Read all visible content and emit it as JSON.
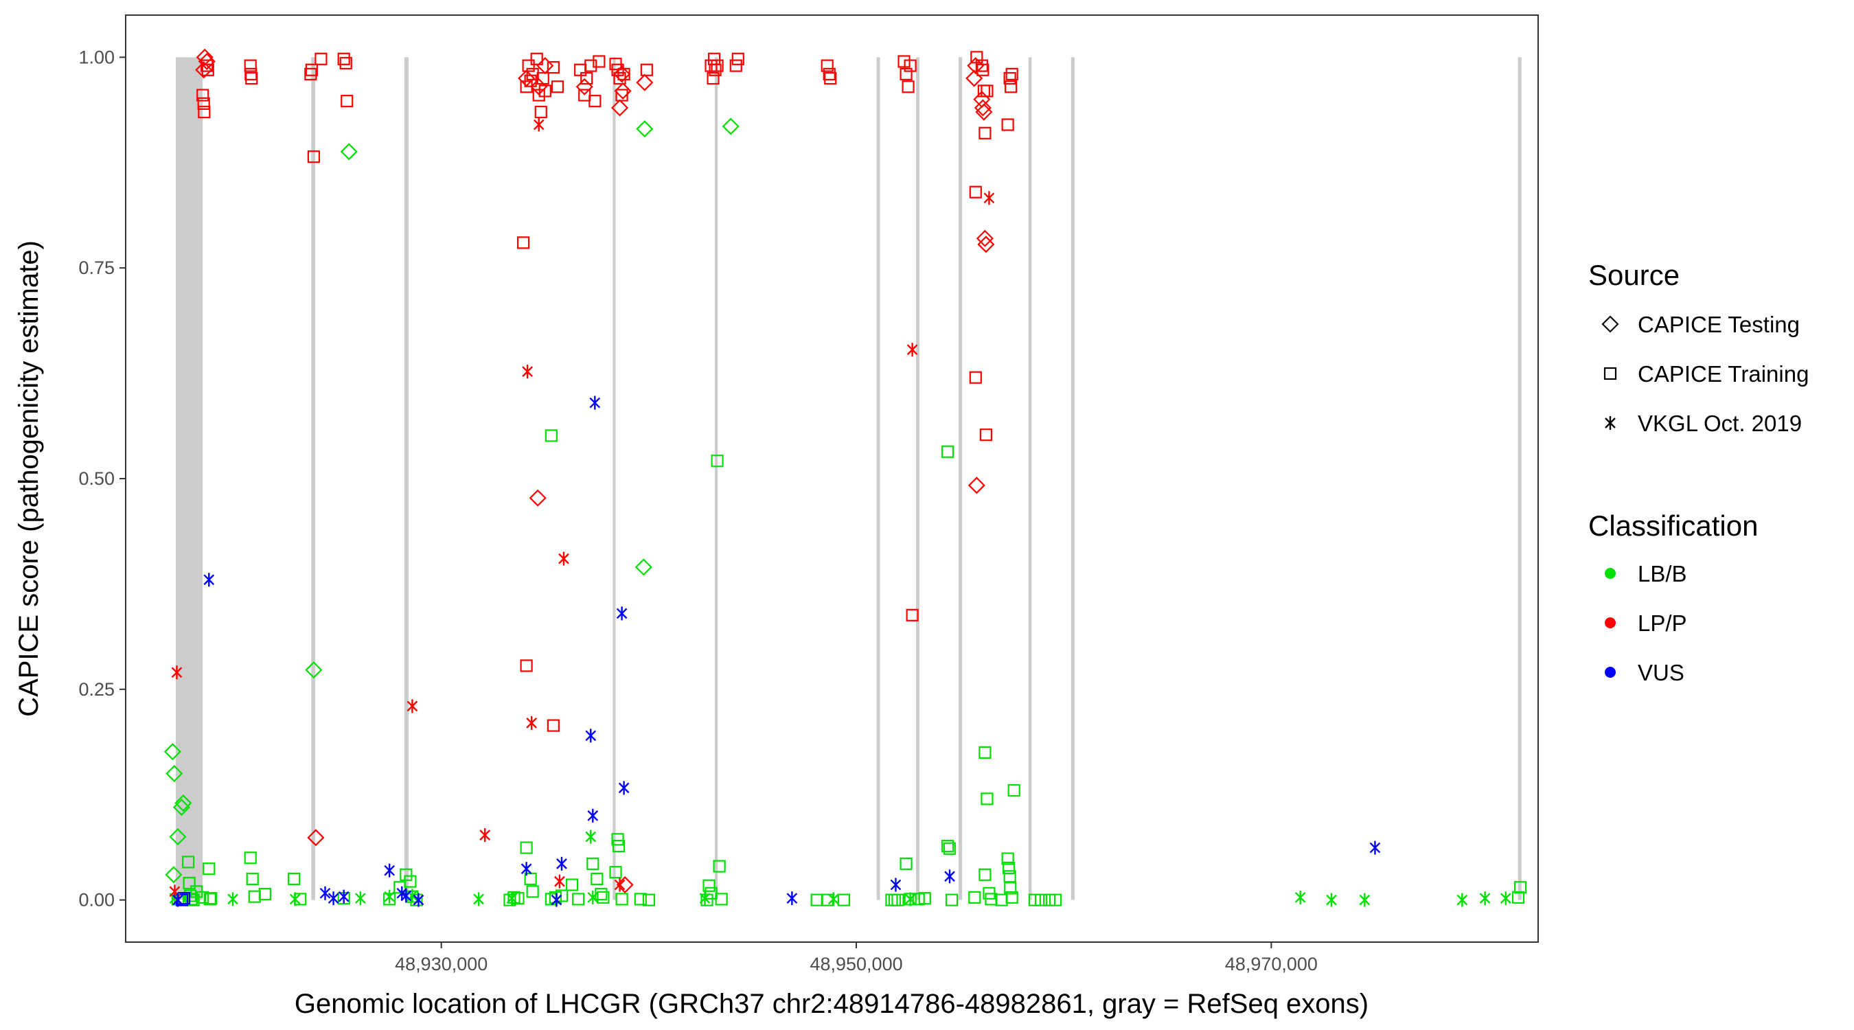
{
  "chart_data": {
    "type": "scatter",
    "title": "",
    "xlabel": "Genomic location of LHCGR (GRCh37 chr2:48914786-48982861, gray = RefSeq exons)",
    "ylabel": "CAPICE score (pathogenicity estimate)",
    "xlim": [
      48914786,
      48982861
    ],
    "ylim": [
      -0.05,
      1.05
    ],
    "x_ticks": [
      48930000,
      48950000,
      48970000
    ],
    "x_tick_labels": [
      "48,930,000",
      "48,950,000",
      "48,970,000"
    ],
    "y_ticks": [
      0,
      0.25,
      0.5,
      0.75,
      1
    ],
    "y_tick_labels": [
      "0.00",
      "0.25",
      "0.50",
      "0.75",
      "1.00"
    ],
    "grid": false,
    "exons": [
      {
        "start": 48917200,
        "end": 48918500
      },
      {
        "start": 48923730,
        "end": 48923920
      },
      {
        "start": 48928220,
        "end": 48928420
      },
      {
        "start": 48938260,
        "end": 48938400
      },
      {
        "start": 48943180,
        "end": 48943320
      },
      {
        "start": 48950980,
        "end": 48951140
      },
      {
        "start": 48952880,
        "end": 48953040
      },
      {
        "start": 48954930,
        "end": 48955100
      },
      {
        "start": 48958300,
        "end": 48958450
      },
      {
        "start": 48960350,
        "end": 48960520
      },
      {
        "start": 48981890,
        "end": 48982060
      }
    ],
    "legend": {
      "position": "right",
      "source_title": "Source",
      "classification_title": "Classification",
      "sources": [
        {
          "key": "testing",
          "label": "CAPICE Testing",
          "shape": "diamond"
        },
        {
          "key": "training",
          "label": "CAPICE Training",
          "shape": "square"
        },
        {
          "key": "vkgl",
          "label": "VKGL Oct. 2019",
          "shape": "asterisk"
        }
      ],
      "classes": [
        {
          "key": "LB",
          "label": "LB/B",
          "color": "#00E000"
        },
        {
          "key": "LP",
          "label": "LP/P",
          "color": "#FF0000"
        },
        {
          "key": "VUS",
          "label": "VUS",
          "color": "#0000FF"
        }
      ]
    },
    "series": [
      {
        "source": "testing",
        "classification": "LB",
        "points": [
          [
            48917050,
            0.176
          ],
          [
            48917130,
            0.15
          ],
          [
            48917300,
            0.075
          ],
          [
            48917480,
            0.11
          ],
          [
            48917560,
            0.115
          ],
          [
            48917100,
            0.03
          ],
          [
            48923850,
            0.273
          ],
          [
            48925550,
            0.888
          ],
          [
            48939800,
            0.915
          ],
          [
            48939750,
            0.395
          ],
          [
            48943950,
            0.918
          ]
        ]
      },
      {
        "source": "testing",
        "classification": "LP",
        "points": [
          [
            48918600,
            1.0
          ],
          [
            48918700,
            0.995
          ],
          [
            48918550,
            0.985
          ],
          [
            48923950,
            0.074
          ],
          [
            48934650,
            0.477
          ],
          [
            48934100,
            0.975
          ],
          [
            48934700,
            0.965
          ],
          [
            48935000,
            0.99
          ],
          [
            48936900,
            0.965
          ],
          [
            48938600,
            0.94
          ],
          [
            48938700,
            0.98
          ],
          [
            48938750,
            0.96
          ],
          [
            48939800,
            0.97
          ],
          [
            48938850,
            0.018
          ],
          [
            48955750,
            0.99
          ],
          [
            48955680,
            0.975
          ],
          [
            48956050,
            0.95
          ],
          [
            48956100,
            0.94
          ],
          [
            48956150,
            0.935
          ],
          [
            48956200,
            0.785
          ],
          [
            48956250,
            0.778
          ],
          [
            48955800,
            0.492
          ]
        ]
      },
      {
        "source": "training",
        "classification": "LB",
        "points": [
          [
            48917300,
            0.001
          ],
          [
            48917600,
            0.002
          ],
          [
            48917800,
            0.045
          ],
          [
            48917850,
            0.02
          ],
          [
            48917900,
            0.005
          ],
          [
            48917950,
            0.001
          ],
          [
            48918050,
            0.0
          ],
          [
            48918200,
            0.01
          ],
          [
            48918500,
            0.003
          ],
          [
            48918800,
            0.037
          ],
          [
            48918850,
            0.001
          ],
          [
            48918900,
            0.002
          ],
          [
            48920800,
            0.05
          ],
          [
            48920900,
            0.025
          ],
          [
            48921000,
            0.004
          ],
          [
            48921500,
            0.007
          ],
          [
            48922900,
            0.025
          ],
          [
            48923200,
            0.001
          ],
          [
            48925300,
            0.002
          ],
          [
            48927500,
            0.001
          ],
          [
            48928000,
            0.015
          ],
          [
            48928300,
            0.03
          ],
          [
            48928500,
            0.022
          ],
          [
            48928600,
            0.004
          ],
          [
            48928800,
            0.0
          ],
          [
            48933300,
            0.0
          ],
          [
            48933500,
            0.003
          ],
          [
            48933700,
            0.002
          ],
          [
            48934100,
            0.062
          ],
          [
            48934300,
            0.025
          ],
          [
            48934400,
            0.01
          ],
          [
            48935300,
            0.551
          ],
          [
            48935300,
            0.001
          ],
          [
            48935500,
            0.003
          ],
          [
            48935800,
            0.005
          ],
          [
            48936300,
            0.018
          ],
          [
            48936600,
            0.001
          ],
          [
            48937300,
            0.043
          ],
          [
            48937500,
            0.025
          ],
          [
            48937700,
            0.007
          ],
          [
            48937800,
            0.003
          ],
          [
            48938400,
            0.033
          ],
          [
            48938500,
            0.072
          ],
          [
            48938550,
            0.064
          ],
          [
            48938700,
            0.001
          ],
          [
            48939600,
            0.001
          ],
          [
            48940000,
            0.0
          ],
          [
            48942800,
            0.0
          ],
          [
            48942900,
            0.017
          ],
          [
            48943000,
            0.008
          ],
          [
            48943300,
            0.521
          ],
          [
            48943400,
            0.04
          ],
          [
            48943500,
            0.001
          ],
          [
            48948100,
            0.0
          ],
          [
            48948600,
            0.0
          ],
          [
            48949400,
            0.0
          ],
          [
            48951700,
            0.0
          ],
          [
            48951850,
            0.0
          ],
          [
            48952000,
            0.0
          ],
          [
            48952400,
            0.043
          ],
          [
            48952600,
            0.001
          ],
          [
            48953000,
            0.001
          ],
          [
            48953300,
            0.002
          ],
          [
            48954400,
            0.532
          ],
          [
            48954400,
            0.064
          ],
          [
            48954500,
            0.061
          ],
          [
            48954600,
            0.0
          ],
          [
            48955700,
            0.003
          ],
          [
            48956200,
            0.175
          ],
          [
            48956200,
            0.03
          ],
          [
            48956300,
            0.12
          ],
          [
            48956400,
            0.008
          ],
          [
            48956500,
            0.001
          ],
          [
            48957000,
            0.0
          ],
          [
            48957300,
            0.049
          ],
          [
            48957350,
            0.038
          ],
          [
            48957400,
            0.028
          ],
          [
            48957420,
            0.014
          ],
          [
            48957500,
            0.003
          ],
          [
            48957600,
            0.13
          ],
          [
            48958600,
            0.0
          ],
          [
            48958900,
            0.0
          ],
          [
            48959300,
            0.0
          ],
          [
            48959600,
            0.0
          ],
          [
            48981900,
            0.003
          ],
          [
            48982000,
            0.015
          ]
        ]
      },
      {
        "source": "training",
        "classification": "LP",
        "points": [
          [
            48918500,
            0.955
          ],
          [
            48918550,
            0.945
          ],
          [
            48918570,
            0.935
          ],
          [
            48918700,
            0.99
          ],
          [
            48918750,
            0.985
          ],
          [
            48920800,
            0.99
          ],
          [
            48920820,
            0.98
          ],
          [
            48920850,
            0.975
          ],
          [
            48923700,
            0.98
          ],
          [
            48923750,
            0.985
          ],
          [
            48924200,
            0.998
          ],
          [
            48923850,
            0.882
          ],
          [
            48925300,
            0.998
          ],
          [
            48925400,
            0.993
          ],
          [
            48925450,
            0.948
          ],
          [
            48934100,
            0.965
          ],
          [
            48934200,
            0.99
          ],
          [
            48934300,
            0.972
          ],
          [
            48934400,
            0.98
          ],
          [
            48934600,
            0.998
          ],
          [
            48934700,
            0.955
          ],
          [
            48934800,
            0.935
          ],
          [
            48934900,
            0.975
          ],
          [
            48935000,
            0.96
          ],
          [
            48935400,
            0.988
          ],
          [
            48935600,
            0.965
          ],
          [
            48933950,
            0.78
          ],
          [
            48934100,
            0.278
          ],
          [
            48935400,
            0.207
          ],
          [
            48936700,
            0.985
          ],
          [
            48936900,
            0.955
          ],
          [
            48937000,
            0.975
          ],
          [
            48937200,
            0.99
          ],
          [
            48937400,
            0.948
          ],
          [
            48937600,
            0.995
          ],
          [
            48938400,
            0.992
          ],
          [
            48938500,
            0.985
          ],
          [
            48938600,
            0.975
          ],
          [
            48938700,
            0.955
          ],
          [
            48938800,
            0.98
          ],
          [
            48939900,
            0.985
          ],
          [
            48943000,
            0.99
          ],
          [
            48943100,
            0.975
          ],
          [
            48943150,
            0.998
          ],
          [
            48943200,
            0.985
          ],
          [
            48943300,
            0.99
          ],
          [
            48944200,
            0.99
          ],
          [
            48944300,
            0.998
          ],
          [
            48948600,
            0.99
          ],
          [
            48948700,
            0.98
          ],
          [
            48948750,
            0.975
          ],
          [
            48952300,
            0.995
          ],
          [
            48952400,
            0.98
          ],
          [
            48952500,
            0.965
          ],
          [
            48952600,
            0.99
          ],
          [
            48952700,
            0.338
          ],
          [
            48955800,
            1.0
          ],
          [
            48955750,
            0.84
          ],
          [
            48955750,
            0.62
          ],
          [
            48956050,
            0.99
          ],
          [
            48956100,
            0.985
          ],
          [
            48956150,
            0.96
          ],
          [
            48956200,
            0.91
          ],
          [
            48956250,
            0.552
          ],
          [
            48956300,
            0.96
          ],
          [
            48957400,
            0.975
          ],
          [
            48957450,
            0.965
          ],
          [
            48957500,
            0.98
          ],
          [
            48957300,
            0.92
          ]
        ]
      },
      {
        "source": "training",
        "classification": "VUS",
        "points": [
          [
            48917500,
            0.0
          ],
          [
            48917600,
            0.002
          ]
        ]
      },
      {
        "source": "vkgl",
        "classification": "LB",
        "points": [
          [
            48917150,
            0.002
          ],
          [
            48919950,
            0.001
          ],
          [
            48922950,
            0.001
          ],
          [
            48926100,
            0.002
          ],
          [
            48927500,
            0.004
          ],
          [
            48928600,
            0.005
          ],
          [
            48931800,
            0.001
          ],
          [
            48933400,
            0.002
          ],
          [
            48937200,
            0.075
          ],
          [
            48937300,
            0.003
          ],
          [
            48942700,
            0.002
          ],
          [
            48948900,
            0.001
          ],
          [
            48952600,
            0.001
          ],
          [
            48971400,
            0.003
          ],
          [
            48972900,
            0.0
          ],
          [
            48974500,
            0.0
          ],
          [
            48979200,
            0.0
          ],
          [
            48980300,
            0.002
          ],
          [
            48981300,
            0.002
          ]
        ]
      },
      {
        "source": "vkgl",
        "classification": "LP",
        "points": [
          [
            48917250,
            0.27
          ],
          [
            48917150,
            0.01
          ],
          [
            48928600,
            0.23
          ],
          [
            48932100,
            0.077
          ],
          [
            48934150,
            0.627
          ],
          [
            48934350,
            0.21
          ],
          [
            48934700,
            0.92
          ],
          [
            48935900,
            0.405
          ],
          [
            48935700,
            0.022
          ],
          [
            48938600,
            0.018
          ],
          [
            48952700,
            0.653
          ],
          [
            48956400,
            0.833
          ]
        ]
      },
      {
        "source": "vkgl",
        "classification": "VUS",
        "points": [
          [
            48918800,
            0.38
          ],
          [
            48917300,
            0.0
          ],
          [
            48924400,
            0.008
          ],
          [
            48924800,
            0.002
          ],
          [
            48925300,
            0.004
          ],
          [
            48927500,
            0.035
          ],
          [
            48928100,
            0.008
          ],
          [
            48928300,
            0.005
          ],
          [
            48928900,
            0.0
          ],
          [
            48934100,
            0.037
          ],
          [
            48935550,
            0.0
          ],
          [
            48935800,
            0.043
          ],
          [
            48937200,
            0.195
          ],
          [
            48937300,
            0.1
          ],
          [
            48937400,
            0.59
          ],
          [
            48938700,
            0.34
          ],
          [
            48938800,
            0.133
          ],
          [
            48946900,
            0.002
          ],
          [
            48951900,
            0.018
          ],
          [
            48954500,
            0.028
          ],
          [
            48975000,
            0.062
          ]
        ]
      }
    ]
  }
}
